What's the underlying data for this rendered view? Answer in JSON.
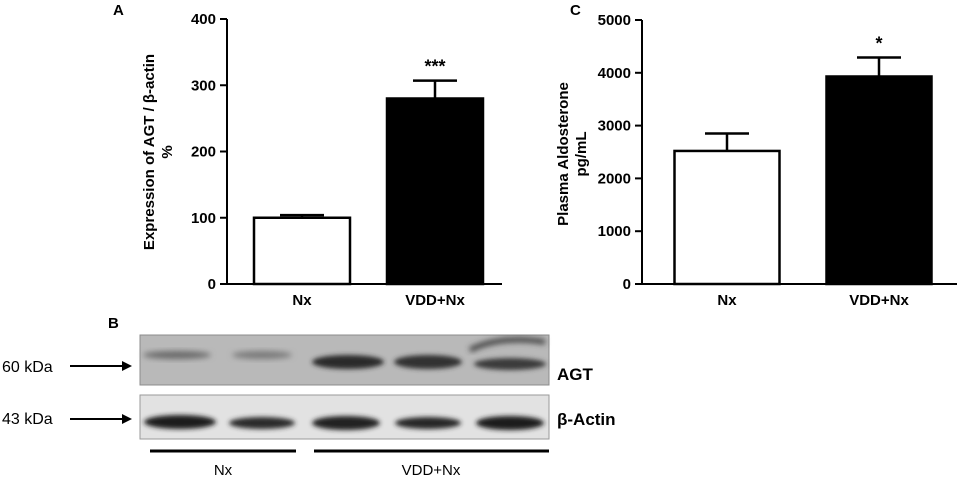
{
  "chart_data": [
    {
      "type": "bar",
      "panel": "A",
      "ylabel_line1": "Expression of AGT / β-actin",
      "ylabel_line2": "%",
      "categories": [
        "Nx",
        "VDD+Nx"
      ],
      "values": [
        100,
        280
      ],
      "errors": [
        4,
        27
      ],
      "fills": [
        "#ffffff",
        "#000000"
      ],
      "significance": [
        "",
        "***"
      ],
      "ylim": [
        0,
        400
      ],
      "yticks": [
        0,
        100,
        200,
        300,
        400
      ]
    },
    {
      "type": "bar",
      "panel": "C",
      "ylabel_line1": "Plasma Aldosterone",
      "ylabel_line2": "pg/mL",
      "categories": [
        "Nx",
        "VDD+Nx"
      ],
      "values": [
        2520,
        3930
      ],
      "errors": [
        330,
        360
      ],
      "fills": [
        "#ffffff",
        "#000000"
      ],
      "significance": [
        "",
        "*"
      ],
      "ylim": [
        0,
        5000
      ],
      "yticks": [
        0,
        1000,
        2000,
        3000,
        4000,
        5000
      ]
    }
  ],
  "blot": {
    "panel": "B",
    "rows": [
      {
        "marker": "60 kDa",
        "protein": "AGT"
      },
      {
        "marker": "43 kDa",
        "protein": "β-Actin"
      }
    ],
    "groups": [
      "Nx",
      "VDD+Nx"
    ],
    "lanes_per_group": [
      2,
      3
    ]
  }
}
